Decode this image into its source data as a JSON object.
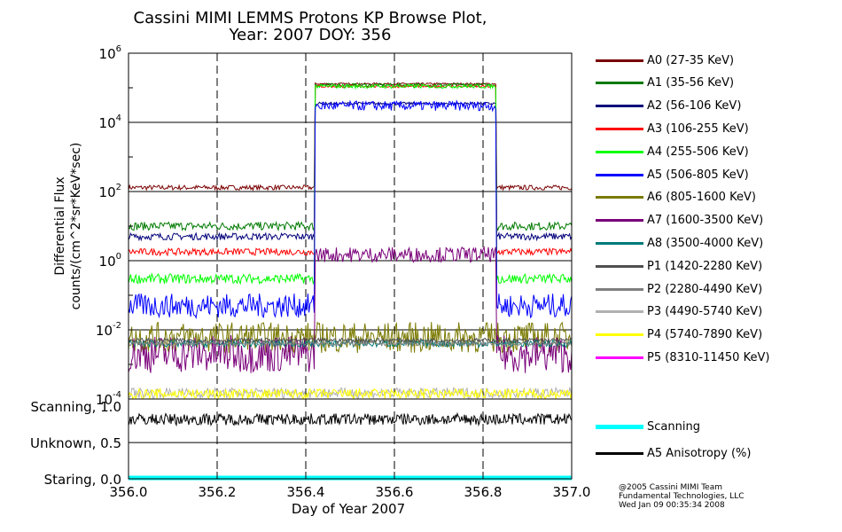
{
  "title": {
    "line1": "Cassini MIMI LEMMS Protons KP Browse Plot,",
    "line2": "Year: 2007 DOY: 356"
  },
  "credit": {
    "line1": "@2005 Cassini MIMI Team",
    "line2": "Fundamental Technologies, LLC",
    "line3": "Wed Jan 09 00:35:34 2008"
  },
  "chart_data": [
    {
      "type": "line",
      "name": "flux",
      "ylabel_line1": "Differential Flux",
      "ylabel_line2": "counts/(cm^2*sr*KeV*sec)",
      "yscale": "log",
      "ylim": [
        0.0001,
        1000000
      ],
      "y_ticks": [
        {
          "value": 1000000.0,
          "base": "10",
          "exp": "6"
        },
        {
          "value": 10000.0,
          "base": "10",
          "exp": "4"
        },
        {
          "value": 100.0,
          "base": "10",
          "exp": "2"
        },
        {
          "value": 1,
          "base": "10",
          "exp": "0"
        },
        {
          "value": 0.01,
          "base": "10",
          "exp": "-2"
        },
        {
          "value": 0.0001,
          "base": "10",
          "exp": "-4"
        }
      ],
      "xlim": [
        356.0,
        357.0
      ],
      "dashed_x": [
        356.2,
        356.4,
        356.6,
        356.8
      ],
      "event_window": [
        356.42,
        356.83
      ],
      "series": [
        {
          "name": "A0 (27-35 KeV)",
          "color": "#7a0000",
          "base": 130.0,
          "in_window": 130000.0,
          "noise": 0.07
        },
        {
          "name": "A1 (35-56 KeV)",
          "color": "#007a00",
          "base": 10.0,
          "in_window": 120000.0,
          "noise": 0.12
        },
        {
          "name": "A2 (56-106 KeV)",
          "color": "#00007a",
          "base": 5.0,
          "in_window": 35000.0,
          "noise": 0.1
        },
        {
          "name": "A3 (106-255 KeV)",
          "color": "#ff0000",
          "base": 1.8,
          "in_window": 110000.0,
          "noise": 0.1
        },
        {
          "name": "A4 (255-506 KeV)",
          "color": "#00ff00",
          "base": 0.3,
          "in_window": 110000.0,
          "noise": 0.14
        },
        {
          "name": "A5 (506-805 KeV)",
          "color": "#0000ff",
          "base": 0.05,
          "in_window": 30000.0,
          "noise": 0.35
        },
        {
          "name": "A6 (805-1600 KeV)",
          "color": "#7a7a00",
          "base": 0.006,
          "in_window": 0.006,
          "noise": 0.45
        },
        {
          "name": "A7 (1600-3500 KeV)",
          "color": "#7a007a",
          "base": 0.002,
          "in_window": 1.5,
          "noise": 0.55
        },
        {
          "name": "A8 (3500-4000 KeV)",
          "color": "#007a7a",
          "base": 0.004,
          "in_window": 0.004,
          "noise": 0.1
        },
        {
          "name": "P1 (1420-2280 KeV)",
          "color": "#4f4f4f",
          "base": 0.005,
          "in_window": 0.005,
          "noise": 0.06
        },
        {
          "name": "P2 (2280-4490 KeV)",
          "color": "#7f7f7f",
          "base": 0.004,
          "in_window": 0.004,
          "noise": 0.06
        },
        {
          "name": "P3 (4490-5740 KeV)",
          "color": "#b0b0b0",
          "base": 0.00015,
          "in_window": 0.00015,
          "noise": 0.15
        },
        {
          "name": "P4 (5740-7890 KeV)",
          "color": "#ffff00",
          "base": 0.00014,
          "in_window": 0.00014,
          "noise": 0.15
        },
        {
          "name": "P5 (8310-11450 KeV)",
          "color": "#ff00ff",
          "base": 0.0001,
          "in_window": 0.0001,
          "noise": 0.0
        }
      ]
    },
    {
      "type": "line",
      "name": "mode",
      "ylabels": [
        {
          "label": "Scanning, 1.0",
          "value": 1.0
        },
        {
          "label": "Unknown, 0.5",
          "value": 0.5
        },
        {
          "label": "Staring, 0.0",
          "value": 0.0
        }
      ],
      "ylim": [
        0.0,
        1.1
      ],
      "xlim": [
        356.0,
        357.0
      ],
      "xlabel": "Day of Year 2007",
      "x_ticks": [
        "356.0",
        "356.2",
        "356.4",
        "356.6",
        "356.8",
        "357.0"
      ],
      "series": [
        {
          "name": "Scanning",
          "color": "#00ffff",
          "value": 0.0
        },
        {
          "name": "A5 Anisotropy (%)",
          "color": "#000000",
          "value": 0.82
        }
      ]
    }
  ]
}
